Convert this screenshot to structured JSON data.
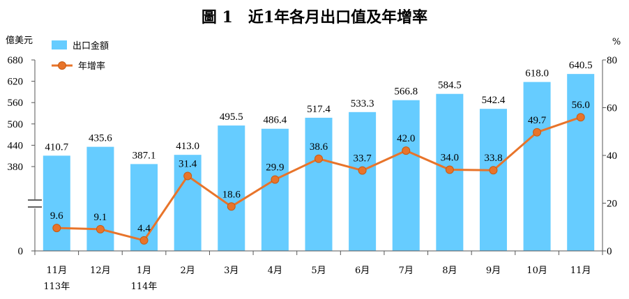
{
  "chart_data": {
    "type": "bar",
    "title": "圖 1　近1年各月出口值及年增率",
    "left_axis": {
      "unit": "億美元",
      "ticks": [
        0,
        380,
        440,
        500,
        560,
        620,
        680
      ],
      "break": true
    },
    "right_axis": {
      "unit": "%",
      "ylim": [
        0,
        80
      ],
      "ticks": [
        0,
        20,
        40,
        60,
        80
      ]
    },
    "categories": [
      {
        "label": "11月",
        "sublabel": "113年"
      },
      {
        "label": "12月",
        "sublabel": ""
      },
      {
        "label": "1月",
        "sublabel": "114年"
      },
      {
        "label": "2月",
        "sublabel": ""
      },
      {
        "label": "3月",
        "sublabel": ""
      },
      {
        "label": "4月",
        "sublabel": ""
      },
      {
        "label": "5月",
        "sublabel": ""
      },
      {
        "label": "6月",
        "sublabel": ""
      },
      {
        "label": "7月",
        "sublabel": ""
      },
      {
        "label": "8月",
        "sublabel": ""
      },
      {
        "label": "9月",
        "sublabel": ""
      },
      {
        "label": "10月",
        "sublabel": ""
      },
      {
        "label": "11月",
        "sublabel": ""
      }
    ],
    "series": [
      {
        "name": "出口金額",
        "type": "bar",
        "axis": "left",
        "color": "#66ccff",
        "values": [
          410.7,
          435.6,
          387.1,
          413.0,
          495.5,
          486.4,
          517.4,
          533.3,
          566.8,
          584.5,
          542.4,
          618.0,
          640.5
        ],
        "labels": [
          "410.7",
          "435.6",
          "387.1",
          "413.0",
          "495.5",
          "486.4",
          "517.4",
          "533.3",
          "566.8",
          "584.5",
          "542.4",
          "618.0",
          "640.5"
        ]
      },
      {
        "name": "年增率",
        "type": "line",
        "axis": "right",
        "color": "#e8742a",
        "values": [
          9.6,
          9.1,
          4.4,
          31.4,
          18.6,
          29.9,
          38.6,
          33.7,
          42.0,
          34.0,
          33.8,
          49.7,
          56.0
        ],
        "labels": [
          "9.6",
          "9.1",
          "4.4",
          "31.4",
          "18.6",
          "29.9",
          "38.6",
          "33.7",
          "42.0",
          "34.0",
          "33.8",
          "49.7",
          "56.0"
        ]
      }
    ],
    "legend": "top-left",
    "grid": false
  }
}
